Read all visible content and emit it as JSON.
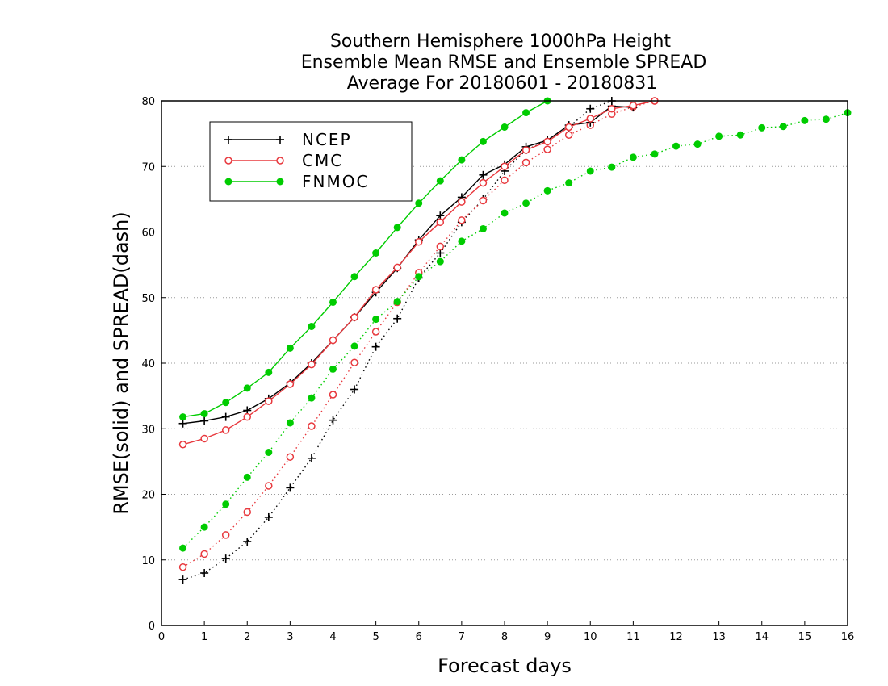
{
  "chart_data": {
    "type": "line",
    "title": [
      "Southern Hemisphere 1000hPa Height",
      "Ensemble Mean RMSE and Ensemble SPREAD",
      "Average For 20180601 - 20180831"
    ],
    "xlabel": "Forecast days",
    "ylabel": "RMSE(solid) and SPREAD(dash)",
    "xlim": [
      0,
      16
    ],
    "ylim": [
      0,
      80
    ],
    "xticks": [
      "0",
      "1",
      "2",
      "3",
      "4",
      "5",
      "6",
      "7",
      "8",
      "9",
      "10",
      "11",
      "12",
      "13",
      "14",
      "15",
      "16"
    ],
    "yticks": [
      "0",
      "10",
      "20",
      "30",
      "40",
      "50",
      "60",
      "70",
      "80"
    ],
    "grid": "horizontal dotted",
    "legend_position": "top-left",
    "series": [
      {
        "name": "NCEP",
        "color": "#000000",
        "marker": "plus",
        "rmse": {
          "x": [
            0.5,
            1.0,
            1.5,
            2.0,
            2.5,
            3.0,
            3.5,
            4.0,
            4.5,
            5.0,
            5.5,
            6.0,
            6.5,
            7.0,
            7.5,
            8.0,
            8.5,
            9.0,
            9.5,
            10.0,
            10.5,
            11.0
          ],
          "y": [
            30.8,
            31.2,
            31.8,
            32.8,
            34.6,
            37.0,
            40.0,
            43.5,
            47.0,
            50.8,
            54.5,
            58.8,
            62.5,
            65.3,
            68.7,
            70.3,
            73.0,
            74.0,
            76.3,
            76.7,
            79.2,
            79.0
          ]
        },
        "spread": {
          "x": [
            0.5,
            1.0,
            1.5,
            2.0,
            2.5,
            3.0,
            3.5,
            4.0,
            4.5,
            5.0,
            5.5,
            6.0,
            6.5,
            7.0,
            7.5,
            8.0,
            8.5,
            9.0,
            9.5,
            10.0,
            10.5
          ],
          "y": [
            7.0,
            8.0,
            10.2,
            12.8,
            16.5,
            21.0,
            25.5,
            31.3,
            36.0,
            42.5,
            46.8,
            53.0,
            56.8,
            61.5,
            65.0,
            69.3,
            72.5,
            74.0,
            76.0,
            78.8,
            80.0
          ]
        }
      },
      {
        "name": "CMC",
        "color": "#e8383d",
        "marker": "open-circle",
        "rmse": {
          "x": [
            0.5,
            1.0,
            1.5,
            2.0,
            2.5,
            3.0,
            3.5,
            4.0,
            4.5,
            5.0,
            5.5,
            6.0,
            6.5,
            7.0,
            7.5,
            8.0,
            8.5,
            9.0,
            9.5,
            10.0,
            10.5,
            11.0,
            11.5
          ],
          "y": [
            27.6,
            28.5,
            29.8,
            31.8,
            34.2,
            36.8,
            39.8,
            43.5,
            47.0,
            51.2,
            54.6,
            58.5,
            61.5,
            64.6,
            67.5,
            70.0,
            72.5,
            73.8,
            76.0,
            77.3,
            78.8,
            79.3,
            80.0
          ]
        },
        "spread": {
          "x": [
            0.5,
            1.0,
            1.5,
            2.0,
            2.5,
            3.0,
            3.5,
            4.0,
            4.5,
            5.0,
            5.5,
            6.0,
            6.5,
            7.0,
            7.5,
            8.0,
            8.5,
            9.0,
            9.5,
            10.0,
            10.5,
            11.0,
            11.5
          ],
          "y": [
            8.9,
            10.9,
            13.8,
            17.3,
            21.3,
            25.7,
            30.4,
            35.2,
            40.1,
            44.8,
            49.3,
            53.8,
            57.8,
            61.8,
            64.8,
            67.9,
            70.6,
            72.6,
            74.8,
            76.3,
            78.0,
            79.1,
            80.0
          ]
        }
      },
      {
        "name": "FNMOC",
        "color": "#00cc00",
        "marker": "filled-circle",
        "rmse": {
          "x": [
            0.5,
            1.0,
            1.5,
            2.0,
            2.5,
            3.0,
            3.5,
            4.0,
            4.5,
            5.0,
            5.5,
            6.0,
            6.5,
            7.0,
            7.5,
            8.0,
            8.5,
            9.0
          ],
          "y": [
            31.8,
            32.3,
            34.0,
            36.2,
            38.6,
            42.3,
            45.6,
            49.3,
            53.2,
            56.8,
            60.7,
            64.4,
            67.8,
            71.0,
            73.8,
            76.0,
            78.2,
            80.0
          ]
        },
        "spread": {
          "x": [
            0.5,
            1.0,
            1.5,
            2.0,
            2.5,
            3.0,
            3.5,
            4.0,
            4.5,
            5.0,
            5.5,
            6.0,
            6.5,
            7.0,
            7.5,
            8.0,
            8.5,
            9.0,
            9.5,
            10.0,
            10.5,
            11.0,
            11.5,
            12.0,
            12.5,
            13.0,
            13.5,
            14.0,
            14.5,
            15.0,
            15.5,
            16.0
          ],
          "y": [
            11.8,
            15.0,
            18.5,
            22.6,
            26.4,
            30.9,
            34.7,
            39.1,
            42.6,
            46.7,
            49.4,
            53.2,
            55.5,
            58.6,
            60.5,
            62.9,
            64.4,
            66.3,
            67.5,
            69.3,
            69.9,
            71.4,
            71.9,
            73.1,
            73.4,
            74.6,
            74.8,
            75.9,
            76.1,
            77.0,
            77.2,
            78.2
          ]
        }
      }
    ]
  }
}
